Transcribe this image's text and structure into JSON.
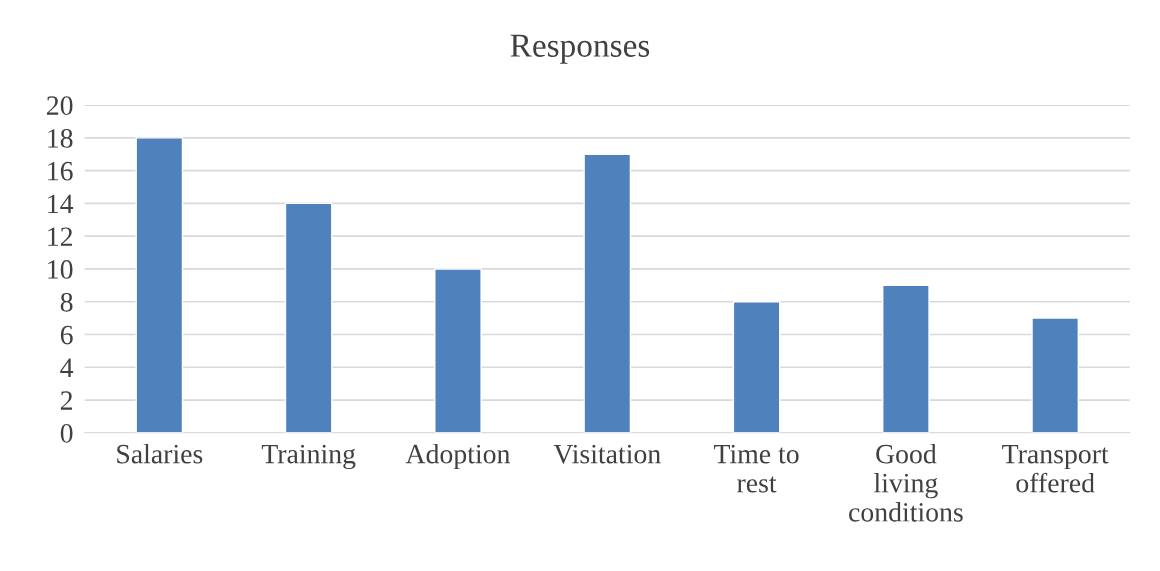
{
  "chart_data": {
    "type": "bar",
    "title": "Responses",
    "categories": [
      "Salaries",
      "Training",
      "Adoption",
      "Visitation",
      "Time to\nrest",
      "Good\nliving\nconditions",
      "Transport\noffered"
    ],
    "values": [
      18,
      14,
      10,
      17,
      8,
      9,
      7
    ],
    "color": "#4f81bd",
    "ylim": [
      0,
      20
    ],
    "yticks": [
      0,
      2,
      4,
      6,
      8,
      10,
      12,
      14,
      16,
      18,
      20
    ],
    "grid": "y"
  }
}
